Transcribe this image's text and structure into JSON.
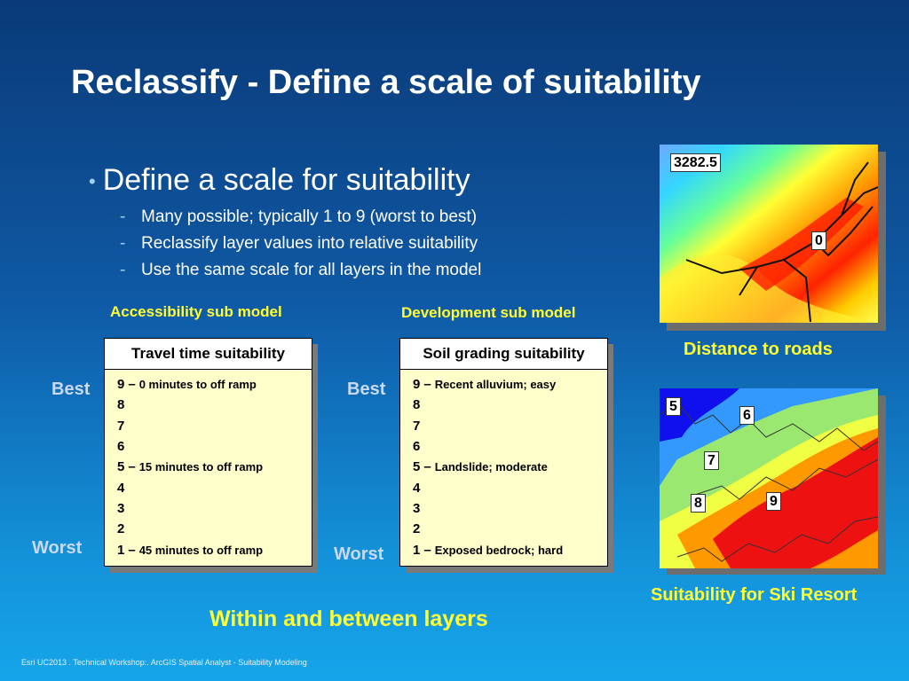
{
  "title": "Reclassify - Define a scale of suitability",
  "main_bullet": "Define a scale for suitability",
  "sub_bullets": [
    "Many possible; typically 1 to 9 (worst to best)",
    "Reclassify layer values into relative suitability",
    "Use the same scale for all layers in the model"
  ],
  "left_model": {
    "label": "Accessibility sub model",
    "best": "Best",
    "worst": "Worst",
    "header": "Travel time suitability",
    "rows": [
      {
        "num": "9",
        "desc": "0 minutes to off ramp"
      },
      {
        "num": "8",
        "desc": ""
      },
      {
        "num": "7",
        "desc": ""
      },
      {
        "num": "6",
        "desc": ""
      },
      {
        "num": "5",
        "desc": "15 minutes to off ramp"
      },
      {
        "num": "4",
        "desc": ""
      },
      {
        "num": "3",
        "desc": ""
      },
      {
        "num": "2",
        "desc": ""
      },
      {
        "num": "1",
        "desc": "45 minutes to off ramp"
      }
    ]
  },
  "right_model": {
    "label": "Development sub model",
    "best": "Best",
    "worst": "Worst",
    "header": "Soil grading suitability",
    "rows": [
      {
        "num": "9",
        "desc": "Recent alluvium; easy"
      },
      {
        "num": "8",
        "desc": ""
      },
      {
        "num": "7",
        "desc": ""
      },
      {
        "num": "6",
        "desc": ""
      },
      {
        "num": "5",
        "desc": "Landslide; moderate"
      },
      {
        "num": "4",
        "desc": ""
      },
      {
        "num": "3",
        "desc": ""
      },
      {
        "num": "2",
        "desc": ""
      },
      {
        "num": "1",
        "desc": "Exposed bedrock; hard"
      }
    ]
  },
  "dash": "–",
  "map_top": {
    "caption": "Distance to roads",
    "label_high": "3282.5",
    "label_low": "0"
  },
  "map_bottom": {
    "caption": "Suitability for Ski Resort",
    "labels": [
      "5",
      "6",
      "7",
      "8",
      "9"
    ]
  },
  "within_text": "Within and between layers",
  "footer": "Esri UC2013 . Technical Workshop:. ArcGIS Spatial Analyst - Suitability Modeling",
  "colors": {
    "accent_yellow": "#ffff33",
    "table_bg": "#ffffcc"
  }
}
